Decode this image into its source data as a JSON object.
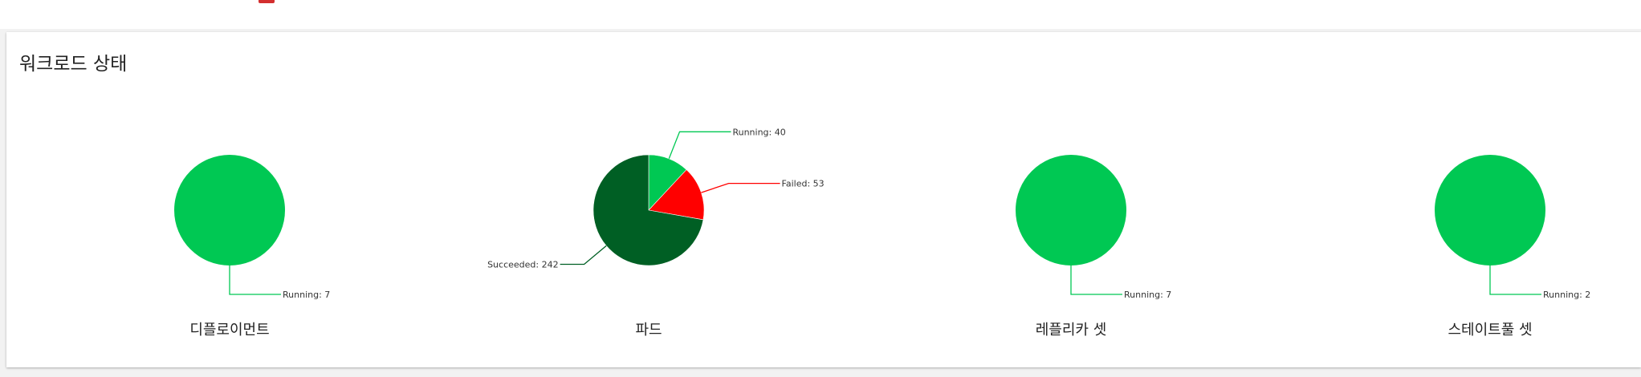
{
  "section": {
    "title": "워크로드 상태"
  },
  "colors": {
    "running": "#00c853",
    "failed": "#ff0000",
    "succeeded": "#005f24"
  },
  "chart_data": [
    {
      "type": "pie",
      "caption": "디플로이먼트",
      "slices": [
        {
          "label": "Running",
          "value": 7,
          "color": "#00c853"
        }
      ]
    },
    {
      "type": "pie",
      "caption": "파드",
      "slices": [
        {
          "label": "Running",
          "value": 40,
          "color": "#00c853"
        },
        {
          "label": "Failed",
          "value": 53,
          "color": "#ff0000"
        },
        {
          "label": "Succeeded",
          "value": 242,
          "color": "#005f24"
        }
      ]
    },
    {
      "type": "pie",
      "caption": "레플리카 셋",
      "slices": [
        {
          "label": "Running",
          "value": 7,
          "color": "#00c853"
        }
      ]
    },
    {
      "type": "pie",
      "caption": "스테이트풀 셋",
      "slices": [
        {
          "label": "Running",
          "value": 2,
          "color": "#00c853"
        }
      ]
    }
  ]
}
